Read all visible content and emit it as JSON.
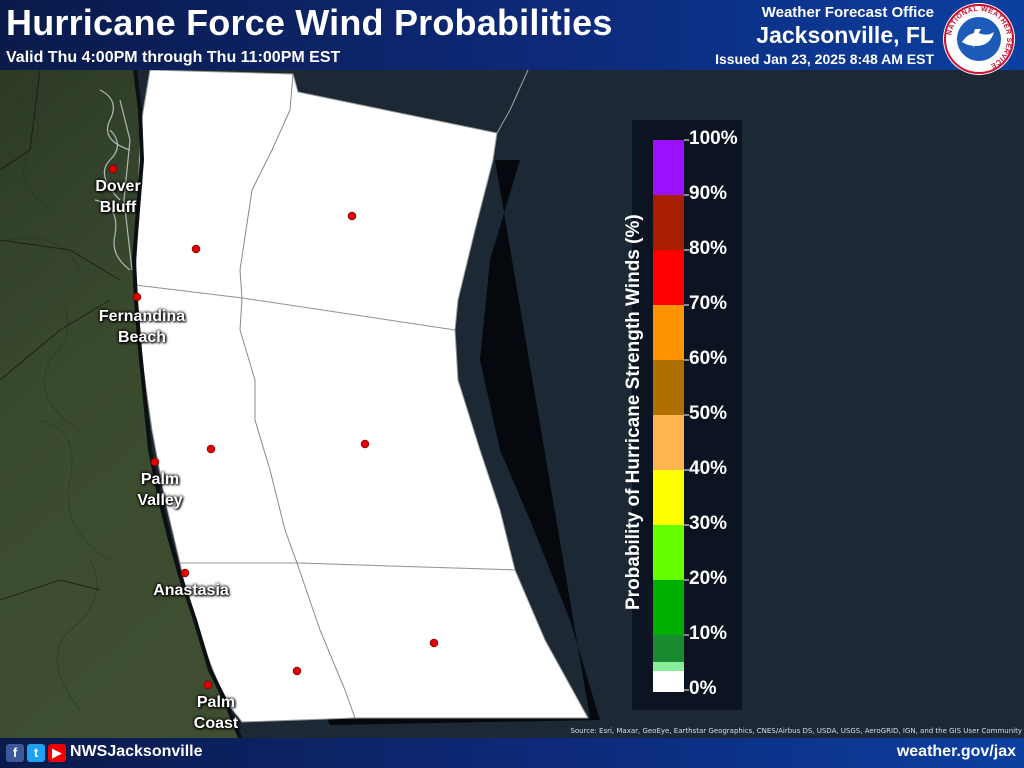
{
  "header": {
    "title": "Hurricane Force Wind Probabilities",
    "valid": "Valid Thu 4:00PM through Thu 11:00PM EST",
    "office_label": "Weather Forecast Office",
    "office_city": "Jacksonville, FL",
    "issued": "Issued Jan 23, 2025 8:48 AM EST",
    "logo_text": "NATIONAL WEATHER SERVICE"
  },
  "map": {
    "cities": [
      {
        "name": "Dover Bluff",
        "line1": "Dover",
        "line2": "Bluff"
      },
      {
        "name": "Fernandina Beach",
        "line1": "Fernandina",
        "line2": "Beach"
      },
      {
        "name": "Palm Valley",
        "line1": "Palm",
        "line2": "Valley"
      },
      {
        "name": "Anastasia",
        "line1": "Anastasia",
        "line2": ""
      },
      {
        "name": "Palm Coast",
        "line1": "Palm",
        "line2": "Coast"
      }
    ],
    "zones_probability_percent": [
      0,
      0,
      0,
      0,
      0,
      0
    ],
    "zone_fill_color": "#ffffff",
    "land_color": "#3a4a2e",
    "water_color": "#1c2833"
  },
  "legend": {
    "title": "Probability of Hurricane Strength Winds (%)",
    "ticks": [
      "100%",
      "90%",
      "80%",
      "70%",
      "60%",
      "50%",
      "40%",
      "30%",
      "20%",
      "10%",
      "0%"
    ],
    "bins": [
      {
        "range": "90-100",
        "color": "#9b10ff"
      },
      {
        "range": "80-90",
        "color": "#a81f00"
      },
      {
        "range": "70-80",
        "color": "#ff0000"
      },
      {
        "range": "60-70",
        "color": "#ff9400"
      },
      {
        "range": "50-60",
        "color": "#b07000"
      },
      {
        "range": "40-50",
        "color": "#ffb450"
      },
      {
        "range": "30-40",
        "color": "#ffff00"
      },
      {
        "range": "20-30",
        "color": "#66ff00"
      },
      {
        "range": "10-20",
        "color": "#00b000"
      },
      {
        "range": "5-10",
        "color": "#1a8a30"
      },
      {
        "range": "2-5",
        "color": "#88ee99"
      },
      {
        "range": "0-2",
        "color": "#ffffff"
      }
    ]
  },
  "source": "Source: Esri, Maxar, GeoEye, Earthstar Geographics, CNES/Airbus DS, USDA, USGS, AeroGRID, IGN, and the GIS User Community",
  "footer": {
    "handle": "NWSJacksonville",
    "site": "weather.gov/jax"
  }
}
